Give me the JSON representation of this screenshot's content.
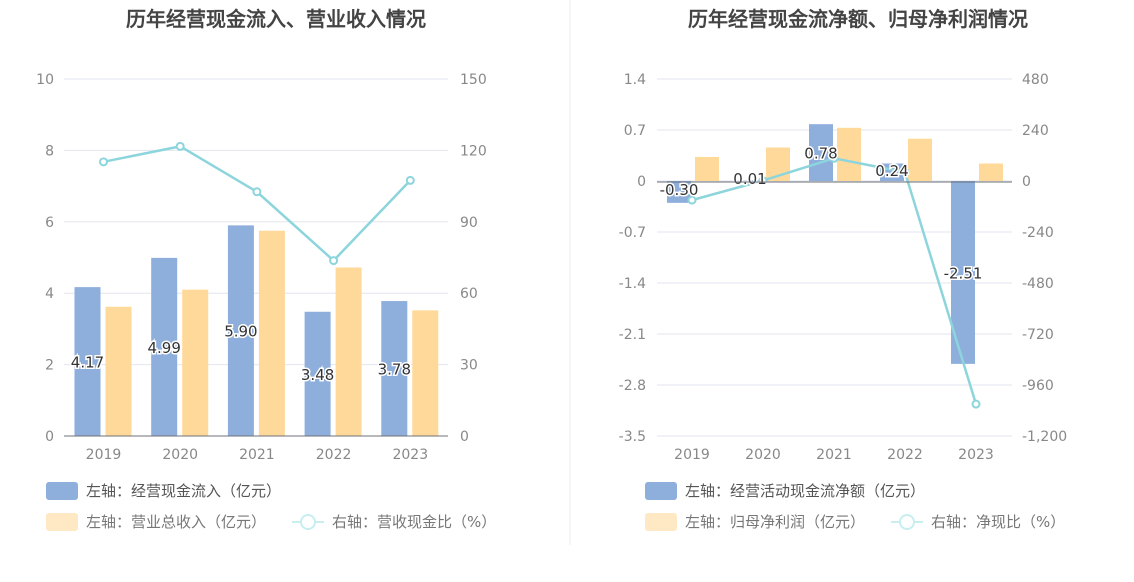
{
  "chart_data": [
    {
      "type": "bar",
      "title": "历年经营现金流入、营业收入情况",
      "categories": [
        "2019",
        "2020",
        "2021",
        "2022",
        "2023"
      ],
      "y_left": {
        "ticks": [
          "0",
          "2",
          "4",
          "6",
          "8",
          "10"
        ],
        "ylim": [
          0,
          10
        ]
      },
      "y_right": {
        "ticks": [
          "0",
          "30",
          "60",
          "90",
          "120",
          "150"
        ],
        "ylim": [
          0,
          150
        ]
      },
      "series": [
        {
          "name": "左轴：经营现金流入（亿元）",
          "kind": "bar",
          "axis": "left",
          "color": "#8eaedc",
          "values": [
            4.17,
            4.99,
            5.9,
            3.48,
            3.78
          ],
          "labels": [
            "4.17",
            "4.99",
            "5.90",
            "3.48",
            "3.78"
          ]
        },
        {
          "name": "左轴：营业总收入（亿元）",
          "kind": "bar",
          "axis": "left",
          "color": "#ffd99a",
          "values": [
            3.62,
            4.1,
            5.75,
            4.72,
            3.52
          ]
        },
        {
          "name": "右轴：营收现金比（%）",
          "kind": "line",
          "axis": "right",
          "color": "#8dd5dc",
          "values": [
            115.2,
            121.7,
            102.6,
            73.7,
            107.4
          ]
        }
      ],
      "grid": true
    },
    {
      "type": "bar",
      "title": "历年经营现金流净额、归母净利润情况",
      "categories": [
        "2019",
        "2020",
        "2021",
        "2022",
        "2023"
      ],
      "y_left": {
        "ticks": [
          "1.4",
          "0.7",
          "0",
          "-0.7",
          "-1.4",
          "-2.1",
          "-2.8",
          "-3.5"
        ],
        "ylim": [
          -3.5,
          1.4
        ]
      },
      "y_right": {
        "ticks": [
          "480",
          "240",
          "0",
          "-240",
          "-480",
          "-720",
          "-960",
          "-1,200"
        ],
        "ylim": [
          -1200,
          480
        ]
      },
      "series": [
        {
          "name": "左轴：经营活动现金流净额（亿元）",
          "kind": "bar",
          "axis": "left",
          "color": "#8eaedc",
          "values": [
            -0.3,
            0.01,
            0.78,
            0.24,
            -2.51
          ],
          "labels": [
            "-0.30",
            "0.01",
            "0.78",
            "0.24",
            "-2.51"
          ]
        },
        {
          "name": "左轴：归母净利润（亿元）",
          "kind": "bar",
          "axis": "left",
          "color": "#ffd99a",
          "values": [
            0.33,
            0.46,
            0.73,
            0.58,
            0.24
          ]
        },
        {
          "name": "右轴：净现比（%）",
          "kind": "line",
          "axis": "right",
          "color": "#8dd5dc",
          "values": [
            -90,
            2,
            107,
            41,
            -1050
          ]
        }
      ],
      "grid": true
    }
  ]
}
